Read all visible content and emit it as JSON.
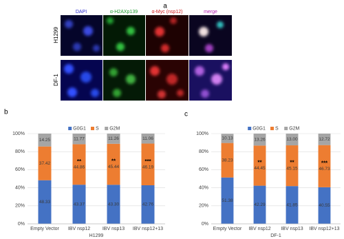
{
  "panel_labels": [
    "a",
    "b",
    "c"
  ],
  "image_panel": {
    "columns": [
      "DAPI",
      "α-H2AXp139",
      "α-Myc (nsp12)",
      "merge"
    ],
    "rows": [
      "H1299",
      "DF-1"
    ]
  },
  "chart_data": [
    {
      "type": "bar",
      "stacked": true,
      "xlabel": "H1299",
      "categories": [
        "Empty Vector",
        "IBV nsp12",
        "IBV nsp13",
        "IBV nsp12+13"
      ],
      "series": [
        {
          "name": "G0G1",
          "color": "#4472c4",
          "values": [
            48.33,
            43.37,
            43.3,
            42.76
          ],
          "value_labels": [
            "48.33",
            "43.37",
            "43.30",
            "42.76"
          ]
        },
        {
          "name": "S",
          "color": "#ed7d31",
          "values": [
            37.42,
            44.86,
            45.44,
            46.19
          ]
        },
        {
          "name": "G2M",
          "color": "#a5a5a5",
          "values": [
            14.25,
            11.77,
            11.26,
            11.06
          ]
        }
      ],
      "ylim": [
        0,
        100
      ],
      "yticks": [
        {
          "value": 0,
          "label": "0%"
        },
        {
          "value": 20,
          "label": "20%"
        },
        {
          "value": 40,
          "label": "40%"
        },
        {
          "value": 60,
          "label": "60%"
        },
        {
          "value": 80,
          "label": "80%"
        },
        {
          "value": 100,
          "label": "100%"
        }
      ],
      "grid": true,
      "legend": "top",
      "annotations": [
        {
          "category": 1,
          "series": 1,
          "text": "**"
        },
        {
          "category": 2,
          "series": 1,
          "text": "**"
        },
        {
          "category": 3,
          "series": 1,
          "text": "***"
        }
      ]
    },
    {
      "type": "bar",
      "stacked": true,
      "xlabel": "DF-1",
      "categories": [
        "Empty Vector",
        "IBV nsp12",
        "IBV nsp13",
        "IBV nsp12+13"
      ],
      "series": [
        {
          "name": "G0G1",
          "color": "#4472c4",
          "values": [
            51.38,
            42.29,
            41.85,
            40.55
          ]
        },
        {
          "name": "S",
          "color": "#ed7d31",
          "values": [
            38.23,
            44.45,
            45.15,
            46.73
          ]
        },
        {
          "name": "G2M",
          "color": "#a5a5a5",
          "values": [
            10.13,
            13.26,
            13.0,
            12.72
          ],
          "value_labels": [
            "10.13",
            "13.26",
            "13.00",
            "12.72"
          ]
        }
      ],
      "ylim": [
        0,
        100
      ],
      "yticks": [
        {
          "value": 0,
          "label": "0%"
        },
        {
          "value": 20,
          "label": "20%"
        },
        {
          "value": 40,
          "label": "40%"
        },
        {
          "value": 60,
          "label": "60%"
        },
        {
          "value": 80,
          "label": "80%"
        },
        {
          "value": 100,
          "label": "100%"
        }
      ],
      "grid": true,
      "legend": "top",
      "annotations": [
        {
          "category": 1,
          "series": 1,
          "text": "**"
        },
        {
          "category": 2,
          "series": 1,
          "text": "**"
        },
        {
          "category": 3,
          "series": 1,
          "text": "***"
        }
      ]
    }
  ]
}
